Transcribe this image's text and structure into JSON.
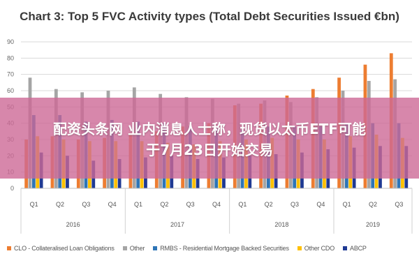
{
  "overlay": {
    "line1": "配资头条网 业内消息人士称，现货以太币ETF可能",
    "line2": "于7月23日开始交易"
  },
  "chart_data": {
    "type": "bar",
    "title": "Chart 3: Top 5 FVC Activity types (Total Debt Securities Issued €bn)",
    "ylim": [
      0,
      90
    ],
    "yticks": [
      0,
      10,
      20,
      30,
      40,
      50,
      60,
      70,
      80,
      90
    ],
    "grid": true,
    "legend_position": "bottom",
    "categories": [
      "Q1",
      "Q2",
      "Q3",
      "Q4",
      "Q1",
      "Q2",
      "Q3",
      "Q4",
      "Q1",
      "Q2",
      "Q3",
      "Q4",
      "Q1",
      "Q2",
      "Q3"
    ],
    "years": [
      {
        "label": "2016",
        "quarters": 4
      },
      {
        "label": "2017",
        "quarters": 4
      },
      {
        "label": "2018",
        "quarters": 4
      },
      {
        "label": "2019",
        "quarters": 3
      }
    ],
    "series": [
      {
        "name": "CLO - Collateralised Loan Obligations",
        "color": "#ED7D31",
        "values": [
          30,
          32,
          30,
          31,
          34,
          35,
          38,
          40,
          51,
          52,
          57,
          61,
          68,
          76,
          83
        ]
      },
      {
        "name": "Other",
        "color": "#A5A5A5",
        "values": [
          68,
          61,
          59,
          60,
          62,
          58,
          56,
          55,
          52,
          54,
          53,
          56,
          60,
          66,
          67
        ]
      },
      {
        "name": "RMBS - Residential Mortgage Backed Securities",
        "color": "#2E75B6",
        "values": [
          45,
          45,
          41,
          42,
          41,
          40,
          38,
          37,
          36,
          38,
          38,
          38,
          40,
          40,
          40
        ]
      },
      {
        "name": "Other CDO",
        "color": "#FFC000",
        "values": [
          32,
          30,
          29,
          29,
          29,
          28,
          27,
          29,
          30,
          31,
          30,
          30,
          32,
          33,
          31
        ]
      },
      {
        "name": "ABCP",
        "color": "#1F3A93",
        "values": [
          22,
          20,
          17,
          18,
          19,
          20,
          18,
          19,
          20,
          21,
          22,
          24,
          25,
          26,
          26
        ]
      }
    ]
  }
}
